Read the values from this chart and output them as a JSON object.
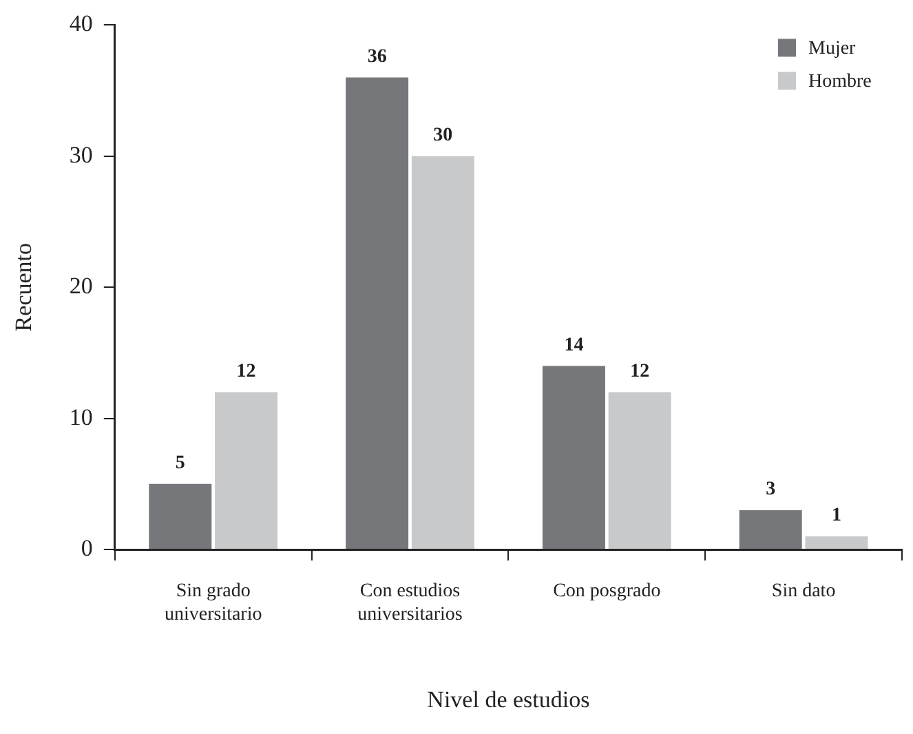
{
  "chart_data": {
    "type": "bar",
    "xlabel": "Nivel de estudios",
    "ylabel": "Recuento",
    "categories": [
      "Sin grado universitario",
      "Con estudios universitarios",
      "Con posgrado",
      "Sin dato"
    ],
    "series": [
      {
        "name": "Mujer",
        "color": "#76777b",
        "values": [
          5,
          36,
          14,
          3
        ]
      },
      {
        "name": "Hombre",
        "color": "#c8c9cb",
        "values": [
          12,
          30,
          12,
          1
        ]
      }
    ],
    "ylim": [
      0,
      40
    ],
    "yticks": [
      0,
      10,
      20,
      30,
      40
    ],
    "grid": false,
    "legend": "top right",
    "data_labels": true
  }
}
